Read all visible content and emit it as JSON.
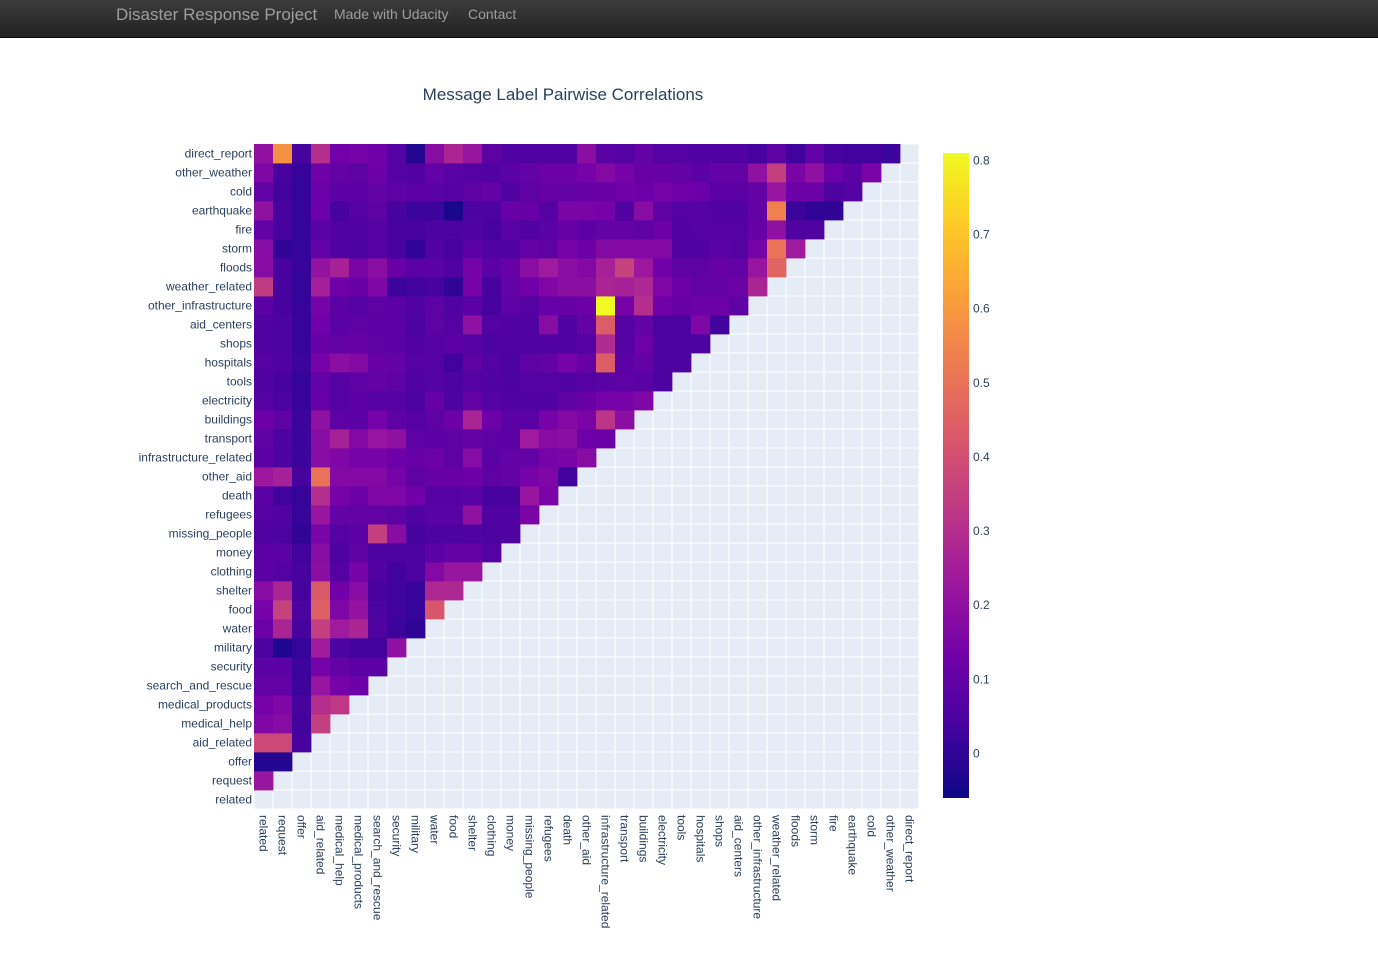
{
  "nav": {
    "brand": "Disaster Response Project",
    "links": [
      "Made with Udacity",
      "Contact"
    ]
  },
  "chart_data": {
    "type": "heatmap",
    "title": "Message Label Pairwise Correlations",
    "labels": [
      "related",
      "request",
      "offer",
      "aid_related",
      "medical_help",
      "medical_products",
      "search_and_rescue",
      "security",
      "military",
      "water",
      "food",
      "shelter",
      "clothing",
      "money",
      "missing_people",
      "refugees",
      "death",
      "other_aid",
      "infrastructure_related",
      "transport",
      "buildings",
      "electricity",
      "tools",
      "hospitals",
      "shops",
      "aid_centers",
      "other_infrastructure",
      "weather_related",
      "floods",
      "storm",
      "fire",
      "earthquake",
      "cold",
      "other_weather",
      "direct_report"
    ],
    "lower_triangle": [
      [],
      [
        0.22
      ],
      [
        -0.02,
        -0.02
      ],
      [
        0.38,
        0.38,
        0.04
      ],
      [
        0.16,
        0.18,
        0.03,
        0.35
      ],
      [
        0.14,
        0.16,
        0.04,
        0.3,
        0.33
      ],
      [
        0.1,
        0.1,
        0.02,
        0.22,
        0.14,
        0.12
      ],
      [
        0.08,
        0.08,
        0.02,
        0.14,
        0.1,
        0.08,
        0.08
      ],
      [
        0.05,
        -0.03,
        0.01,
        0.24,
        0.05,
        0.03,
        0.03,
        0.2
      ],
      [
        0.12,
        0.27,
        0.04,
        0.35,
        0.24,
        0.27,
        0.06,
        0.02,
        0.0
      ],
      [
        0.14,
        0.36,
        0.05,
        0.45,
        0.16,
        0.21,
        0.05,
        0.03,
        0.01,
        0.42
      ],
      [
        0.18,
        0.27,
        0.04,
        0.43,
        0.13,
        0.18,
        0.04,
        0.03,
        0.01,
        0.28,
        0.28
      ],
      [
        0.08,
        0.07,
        0.04,
        0.19,
        0.07,
        0.14,
        0.06,
        0.03,
        0.05,
        0.17,
        0.22,
        0.22
      ],
      [
        0.08,
        0.08,
        0.03,
        0.18,
        0.05,
        0.09,
        0.05,
        0.05,
        0.05,
        0.08,
        0.1,
        0.1,
        0.07
      ],
      [
        0.06,
        0.05,
        0.0,
        0.15,
        0.07,
        0.08,
        0.35,
        0.18,
        0.04,
        0.05,
        0.05,
        0.06,
        0.05,
        0.06
      ],
      [
        0.07,
        0.06,
        0.01,
        0.22,
        0.1,
        0.1,
        0.1,
        0.09,
        0.06,
        0.08,
        0.08,
        0.2,
        0.06,
        0.06,
        0.15
      ],
      [
        0.08,
        0.03,
        0.01,
        0.3,
        0.14,
        0.12,
        0.16,
        0.16,
        0.13,
        0.07,
        0.07,
        0.08,
        0.04,
        0.04,
        0.22,
        0.15
      ],
      [
        0.23,
        0.26,
        0.04,
        0.5,
        0.17,
        0.17,
        0.17,
        0.14,
        0.09,
        0.11,
        0.11,
        0.12,
        0.09,
        0.1,
        0.14,
        0.16,
        0.03
      ],
      [
        0.08,
        0.05,
        0.02,
        0.18,
        0.16,
        0.14,
        0.14,
        0.12,
        0.11,
        0.12,
        0.09,
        0.18,
        0.08,
        0.1,
        0.1,
        0.14,
        0.15,
        0.18
      ],
      [
        0.09,
        0.05,
        0.02,
        0.18,
        0.26,
        0.17,
        0.22,
        0.2,
        0.09,
        0.08,
        0.09,
        0.1,
        0.09,
        0.08,
        0.24,
        0.18,
        0.19,
        0.12,
        0.12
      ],
      [
        0.12,
        0.09,
        0.02,
        0.2,
        0.09,
        0.08,
        0.14,
        0.09,
        0.07,
        0.09,
        0.12,
        0.27,
        0.12,
        0.08,
        0.08,
        0.14,
        0.17,
        0.15,
        0.32,
        0.19
      ],
      [
        0.07,
        0.05,
        0.01,
        0.11,
        0.07,
        0.08,
        0.07,
        0.07,
        0.05,
        0.11,
        0.05,
        0.1,
        0.07,
        0.06,
        0.06,
        0.06,
        0.09,
        0.11,
        0.14,
        0.14,
        0.16
      ],
      [
        0.06,
        0.04,
        0.01,
        0.1,
        0.07,
        0.09,
        0.1,
        0.09,
        0.06,
        0.07,
        0.05,
        0.07,
        0.06,
        0.05,
        0.07,
        0.07,
        0.06,
        0.07,
        0.08,
        0.09,
        0.08,
        0.05
      ],
      [
        0.07,
        0.06,
        0.02,
        0.14,
        0.19,
        0.17,
        0.11,
        0.1,
        0.07,
        0.07,
        0.03,
        0.09,
        0.07,
        0.05,
        0.09,
        0.1,
        0.14,
        0.11,
        0.44,
        0.08,
        0.1,
        0.05,
        0.05
      ],
      [
        0.06,
        0.05,
        0.01,
        0.11,
        0.1,
        0.11,
        0.09,
        0.08,
        0.06,
        0.07,
        0.08,
        0.07,
        0.05,
        0.06,
        0.06,
        0.06,
        0.06,
        0.07,
        0.29,
        0.07,
        0.12,
        0.05,
        0.05,
        0.05
      ],
      [
        0.06,
        0.05,
        0.01,
        0.13,
        0.08,
        0.09,
        0.08,
        0.08,
        0.05,
        0.09,
        0.07,
        0.2,
        0.07,
        0.06,
        0.06,
        0.18,
        0.06,
        0.1,
        0.44,
        0.07,
        0.1,
        0.05,
        0.05,
        0.16,
        0.03
      ],
      [
        0.08,
        0.04,
        0.01,
        0.14,
        0.08,
        0.07,
        0.09,
        0.08,
        0.06,
        0.09,
        0.06,
        0.08,
        0.04,
        0.09,
        0.07,
        0.11,
        0.11,
        0.12,
        0.81,
        0.14,
        0.3,
        0.13,
        0.11,
        0.12,
        0.12,
        0.09
      ],
      [
        0.34,
        0.04,
        0.01,
        0.25,
        0.13,
        0.11,
        0.16,
        0.02,
        0.03,
        0.04,
        0.0,
        0.14,
        0.04,
        0.1,
        0.13,
        0.16,
        0.19,
        0.19,
        0.27,
        0.26,
        0.28,
        0.16,
        0.12,
        0.1,
        0.1,
        0.12,
        0.27
      ],
      [
        0.18,
        0.04,
        0.01,
        0.21,
        0.26,
        0.15,
        0.19,
        0.11,
        0.08,
        0.08,
        0.06,
        0.14,
        0.08,
        0.11,
        0.19,
        0.24,
        0.19,
        0.17,
        0.26,
        0.36,
        0.23,
        0.13,
        0.09,
        0.09,
        0.11,
        0.1,
        0.22,
        0.46
      ],
      [
        0.18,
        0.0,
        0.01,
        0.1,
        0.06,
        0.05,
        0.07,
        0.04,
        0.0,
        0.06,
        0.04,
        0.08,
        0.06,
        0.06,
        0.1,
        0.09,
        0.14,
        0.12,
        0.17,
        0.17,
        0.17,
        0.17,
        0.06,
        0.06,
        0.08,
        0.07,
        0.14,
        0.5,
        0.24
      ],
      [
        0.1,
        0.04,
        0.01,
        0.08,
        0.06,
        0.06,
        0.07,
        0.04,
        0.04,
        0.05,
        0.05,
        0.06,
        0.04,
        0.08,
        0.06,
        0.08,
        0.11,
        0.08,
        0.1,
        0.1,
        0.09,
        0.12,
        0.06,
        0.07,
        0.07,
        0.07,
        0.11,
        0.2,
        0.06,
        0.06
      ],
      [
        0.2,
        0.04,
        0.01,
        0.12,
        0.04,
        0.07,
        0.09,
        0.04,
        0.02,
        0.02,
        -0.04,
        0.05,
        0.05,
        0.11,
        0.11,
        0.07,
        0.15,
        0.15,
        0.14,
        0.06,
        0.18,
        0.09,
        0.07,
        0.07,
        0.06,
        0.06,
        0.1,
        0.54,
        0.02,
        0.0,
        0.0
      ],
      [
        0.1,
        0.03,
        0.01,
        0.12,
        0.08,
        0.08,
        0.1,
        0.09,
        0.08,
        0.08,
        0.07,
        0.09,
        0.1,
        0.06,
        0.09,
        0.11,
        0.1,
        0.11,
        0.11,
        0.13,
        0.12,
        0.14,
        0.13,
        0.12,
        0.08,
        0.08,
        0.1,
        0.22,
        0.12,
        0.12,
        0.05,
        0.07
      ],
      [
        0.16,
        0.04,
        0.01,
        0.13,
        0.1,
        0.09,
        0.12,
        0.07,
        0.06,
        0.1,
        0.08,
        0.07,
        0.06,
        0.08,
        0.1,
        0.12,
        0.12,
        0.14,
        0.17,
        0.14,
        0.11,
        0.11,
        0.1,
        0.08,
        0.1,
        0.1,
        0.2,
        0.35,
        0.15,
        0.2,
        0.12,
        0.08,
        0.15
      ],
      [
        0.2,
        0.58,
        0.04,
        0.3,
        0.13,
        0.14,
        0.13,
        0.07,
        -0.02,
        0.18,
        0.27,
        0.22,
        0.09,
        0.06,
        0.06,
        0.06,
        0.06,
        0.19,
        0.08,
        0.07,
        0.1,
        0.07,
        0.07,
        0.06,
        0.06,
        0.06,
        0.04,
        0.09,
        0.03,
        0.1,
        0.04,
        0.03,
        0.03,
        0.02
      ]
    ],
    "zmin": -0.06,
    "zmax": 0.81,
    "colorscale": [
      "#0d0887",
      "#46039f",
      "#7201a8",
      "#9c179e",
      "#bd3786",
      "#d8576b",
      "#ed7953",
      "#fb9f3a",
      "#fdca26",
      "#f0f921"
    ],
    "colorbar_ticks": [
      0,
      0.1,
      0.2,
      0.3,
      0.4,
      0.5,
      0.6,
      0.7,
      0.8
    ],
    "colorbar_ticklabels": [
      "0",
      "0.1",
      "0.2",
      "0.3",
      "0.4",
      "0.5",
      "0.6",
      "0.7",
      "0.8"
    ]
  }
}
